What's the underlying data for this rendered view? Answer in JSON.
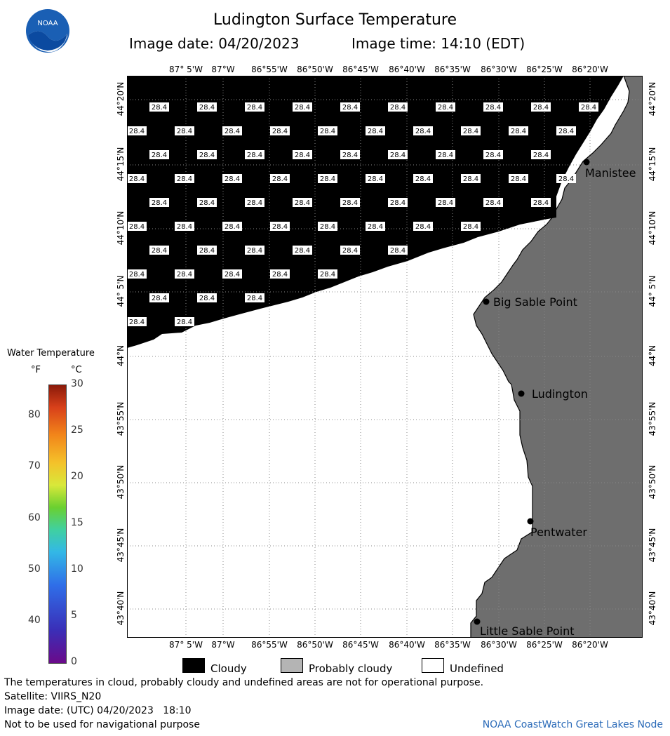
{
  "header": {
    "title": "Ludington Surface Temperature",
    "image_date": "Image date: 04/20/2023",
    "image_time": "Image time: 14:10 (EDT)"
  },
  "logo": {
    "text": "NOAA",
    "icon": "noaa-logo-icon"
  },
  "map": {
    "lon_labels": [
      "87° 5'W",
      "87°W",
      "86°55'W",
      "86°50'W",
      "86°45'W",
      "86°40'W",
      "86°35'W",
      "86°30'W",
      "86°25'W",
      "86°20'W"
    ],
    "lat_labels": [
      "44°20'N",
      "44°15'N",
      "44°10'N",
      "44° 5'N",
      "44°N",
      "43°55'N",
      "43°50'N",
      "43°45'N",
      "43°40'N"
    ],
    "cell_value": "28.4",
    "places": [
      "Manistee",
      "Big Sable Point",
      "Ludington",
      "Pentwater",
      "Little Sable Point"
    ],
    "colors": {
      "cloudy": "#000000",
      "probably_cloudy": "#6e6e6e",
      "undefined": "#ffffff",
      "grid": "#888888"
    }
  },
  "scale": {
    "title": "Water Temperature",
    "unit_f": "°F",
    "unit_c": "°C",
    "f_ticks": [
      "80",
      "70",
      "60",
      "50",
      "40"
    ],
    "c_ticks": [
      "30",
      "25",
      "20",
      "15",
      "10",
      "5",
      "0"
    ]
  },
  "legend": {
    "cloudy": "Cloudy",
    "probably_cloudy": "Probably cloudy",
    "undefined": "Undefined"
  },
  "footer": {
    "disclaimer": "The temperatures in cloud, probably cloudy and undefined areas are not for operational purpose.",
    "satellite": "Satellite: VIIRS_N20",
    "utc_date": "Image date: (UTC) 04/20/2023   18:10",
    "nav_warning": "Not to be used for navigational purpose",
    "credit": "NOAA CoastWatch Great Lakes Node"
  }
}
